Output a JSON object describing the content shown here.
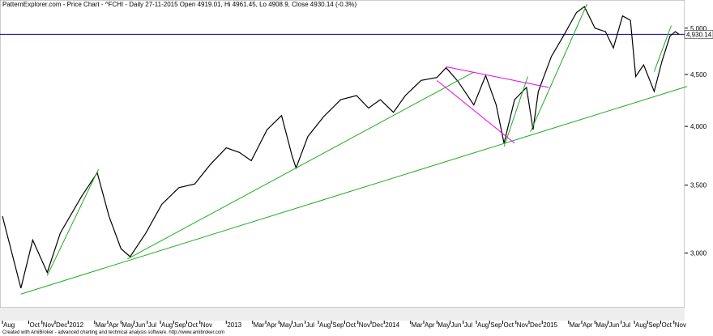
{
  "chart_data": {
    "type": "line",
    "title": "PatternExplorer.com - Price Chart - ^FCHI - Daily 27-11-2015 Open 4919.01, Hi 4961.45, Lo 4908.9, Close 4930.14 (-0.3%)",
    "footer": "Created with AmiBroker - advanced charting and technical analysis software. http://www.amibroker.com",
    "log_scale": true,
    "color": "#000000",
    "x": [
      0,
      1.4,
      2.3,
      3.4,
      4.4,
      6.0,
      7.2,
      8.1,
      9.0,
      9.7,
      10.9,
      12.1,
      13.4,
      14.6,
      15.8,
      17.0,
      18.0,
      18.9,
      20.1,
      21.2,
      22.0,
      22.3,
      23.2,
      24.4,
      25.7,
      26.9,
      27.8,
      28.7,
      29.7,
      30.6,
      31.8,
      33.0,
      33.7,
      34.6,
      35.8,
      36.7,
      37.5,
      38.1,
      38.9,
      39.8,
      40.3,
      40.7,
      41.7,
      42.6,
      43.6,
      44.2,
      45.0,
      45.8,
      46.4,
      47.1,
      47.7,
      48.1,
      48.7,
      49.5,
      50.1,
      50.7,
      51.1,
      51.4
    ],
    "values": [
      3262,
      2770,
      3090,
      2870,
      3140,
      3410,
      3600,
      3260,
      3030,
      2975,
      3140,
      3350,
      3480,
      3510,
      3670,
      3810,
      3770,
      3700,
      3970,
      4100,
      3740,
      3640,
      3910,
      4090,
      4250,
      4290,
      4170,
      4250,
      4130,
      4290,
      4440,
      4470,
      4570,
      4430,
      4200,
      4490,
      4200,
      3850,
      4250,
      4370,
      3970,
      4330,
      4690,
      4910,
      5180,
      5250,
      5000,
      4960,
      4780,
      5140,
      5090,
      4480,
      4600,
      4330,
      4640,
      4910,
      4960,
      4930.14
    ],
    "xlim": [
      0,
      52
    ],
    "xticks": [
      {
        "value": 0,
        "label": "Aug"
      },
      {
        "value": 2,
        "label": "Oct"
      },
      {
        "value": 3,
        "label": "Nov"
      },
      {
        "value": 4,
        "label": "Dec"
      },
      {
        "value": 5,
        "label": "2012"
      },
      {
        "value": 7,
        "label": "Mar"
      },
      {
        "value": 8,
        "label": "Apr"
      },
      {
        "value": 9,
        "label": "May"
      },
      {
        "value": 10,
        "label": "Jun"
      },
      {
        "value": 11,
        "label": "Jul"
      },
      {
        "value": 12,
        "label": "Aug"
      },
      {
        "value": 13,
        "label": "Sep"
      },
      {
        "value": 14,
        "label": "Oct"
      },
      {
        "value": 15,
        "label": "Nov"
      },
      {
        "value": 17,
        "label": "2013"
      },
      {
        "value": 19,
        "label": "Mar"
      },
      {
        "value": 20,
        "label": "Apr"
      },
      {
        "value": 21,
        "label": "May"
      },
      {
        "value": 22,
        "label": "Jun"
      },
      {
        "value": 23,
        "label": "Jul"
      },
      {
        "value": 24,
        "label": "Aug"
      },
      {
        "value": 25,
        "label": "Sep"
      },
      {
        "value": 26,
        "label": "Oct"
      },
      {
        "value": 27,
        "label": "Nov"
      },
      {
        "value": 28,
        "label": "Dec"
      },
      {
        "value": 29,
        "label": "2014"
      },
      {
        "value": 31,
        "label": "Mar"
      },
      {
        "value": 32,
        "label": "Apr"
      },
      {
        "value": 33,
        "label": "May"
      },
      {
        "value": 34,
        "label": "Jun"
      },
      {
        "value": 35,
        "label": "Jul"
      },
      {
        "value": 36,
        "label": "Aug"
      },
      {
        "value": 37,
        "label": "Sep"
      },
      {
        "value": 38,
        "label": "Oct"
      },
      {
        "value": 39,
        "label": "Nov"
      },
      {
        "value": 40,
        "label": "Dec"
      },
      {
        "value": 41,
        "label": "2015"
      },
      {
        "value": 43,
        "label": "Mar"
      },
      {
        "value": 44,
        "label": "Apr"
      },
      {
        "value": 45,
        "label": "May"
      },
      {
        "value": 46,
        "label": "Jun"
      },
      {
        "value": 47,
        "label": "Jul"
      },
      {
        "value": 48,
        "label": "Aug"
      },
      {
        "value": 49,
        "label": "Sep"
      },
      {
        "value": 50,
        "label": "Oct"
      },
      {
        "value": 51,
        "label": "Nov"
      }
    ],
    "ylim": [
      2650,
      5330
    ],
    "yticks": [
      {
        "value": 3000,
        "label": "3,000"
      },
      {
        "value": 3500,
        "label": "3,500"
      },
      {
        "value": 4000,
        "label": "4,000"
      },
      {
        "value": 4500,
        "label": "4,500"
      },
      {
        "value": 5000,
        "label": "5,000"
      }
    ],
    "last_price": {
      "value": 4930.14,
      "label": "4,930.14"
    },
    "last_price_color": "#00008b",
    "trendlines": [
      {
        "color": "#22aa22",
        "x": [
          1.4,
          52
        ],
        "y": [
          2733,
          4380
        ]
      },
      {
        "color": "#22aa22",
        "x": [
          9.5,
          35.8
        ],
        "y": [
          2960,
          4525
        ]
      },
      {
        "color": "#22aa22",
        "x": [
          3.4,
          7.3
        ],
        "y": [
          2850,
          3630
        ]
      },
      {
        "color": "#22aa22",
        "x": [
          38.1,
          39.9
        ],
        "y": [
          3820,
          4480
        ]
      },
      {
        "color": "#22aa22",
        "x": [
          40.1,
          44.4
        ],
        "y": [
          3950,
          5280
        ]
      },
      {
        "color": "#22aa22",
        "x": [
          49.5,
          50.8
        ],
        "y": [
          4530,
          5030
        ]
      },
      {
        "color": "#ee00ee",
        "x": [
          33.7,
          41.5
        ],
        "y": [
          4580,
          4370
        ]
      },
      {
        "color": "#ee00ee",
        "x": [
          33.0,
          38.9
        ],
        "y": [
          4440,
          3850
        ]
      }
    ]
  }
}
